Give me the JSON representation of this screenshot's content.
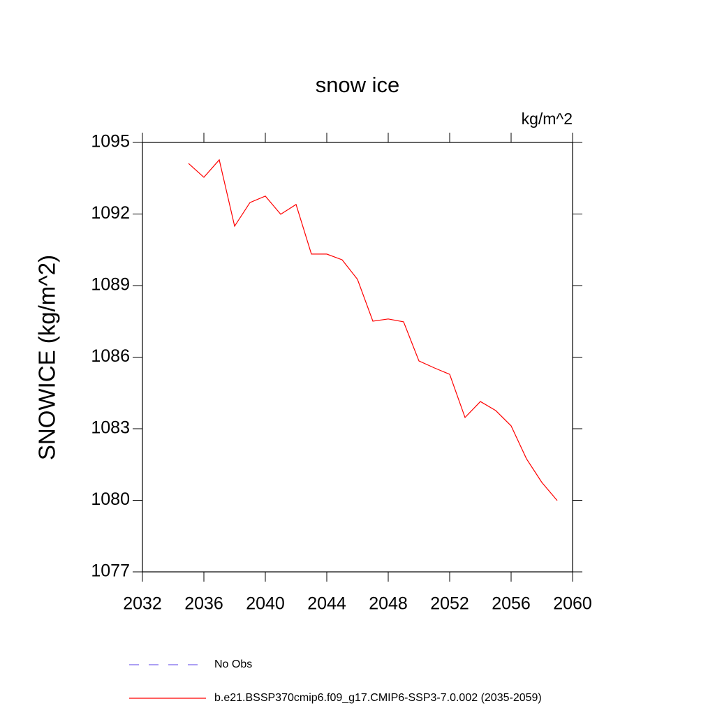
{
  "chart_data": {
    "type": "line",
    "title": "snow ice",
    "units": "kg/m^2",
    "y_label": "SNOWICE  (kg/m^2)",
    "x": [
      2035,
      2036,
      2037,
      2038,
      2039,
      2040,
      2041,
      2042,
      2043,
      2044,
      2045,
      2046,
      2047,
      2048,
      2049,
      2050,
      2051,
      2052,
      2053,
      2054,
      2055,
      2056,
      2057,
      2058,
      2059
    ],
    "series": [
      {
        "name": "No Obs",
        "color": "#7b68ee",
        "dash": true,
        "values": [
          null,
          null,
          null,
          null,
          null,
          null,
          null,
          null,
          null,
          null,
          null,
          null,
          null,
          null,
          null,
          null,
          null,
          null,
          null,
          null,
          null,
          null,
          null,
          null,
          null
        ]
      },
      {
        "name": "b.e21.BSSP370cmip6.f09_g17.CMIP6-SSP3-7.0.002 (2035-2059)",
        "color": "#ff0000",
        "dash": false,
        "values": [
          1094.12,
          1093.54,
          1094.27,
          1091.49,
          1092.48,
          1092.75,
          1091.99,
          1092.4,
          1090.32,
          1090.32,
          1090.08,
          1089.26,
          1087.51,
          1087.6,
          1087.48,
          1085.84,
          1085.55,
          1085.28,
          1083.47,
          1084.14,
          1083.76,
          1083.12,
          1081.74,
          1080.75,
          1079.99
        ]
      }
    ],
    "xlim": [
      2032,
      2060
    ],
    "xticks": [
      2032,
      2036,
      2040,
      2044,
      2048,
      2052,
      2056,
      2060
    ],
    "ylim": [
      1077,
      1095
    ],
    "yticks": [
      1077,
      1080,
      1083,
      1086,
      1089,
      1092,
      1095
    ]
  }
}
